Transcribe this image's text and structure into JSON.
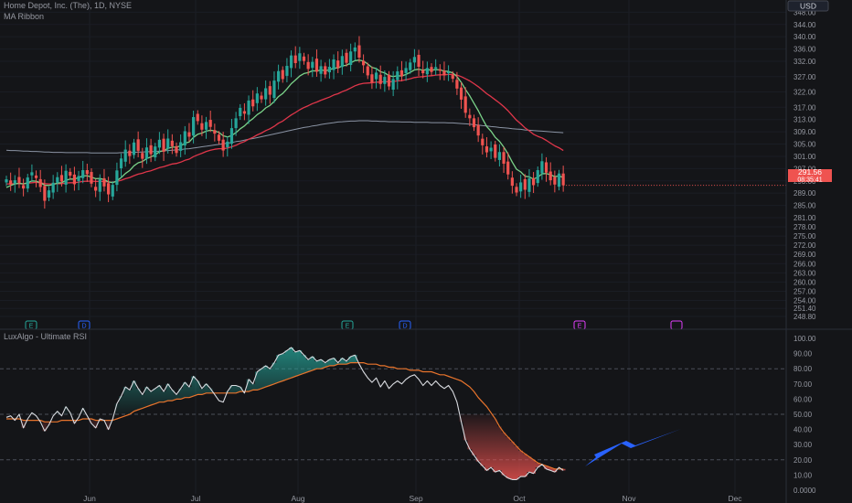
{
  "header": {
    "symbol_line": "Home Depot, Inc. (The), 1D, NYSE",
    "indicator_1": "MA Ribbon",
    "indicator_2": "LuxAlgo - Ultimate RSI",
    "currency": "USD"
  },
  "colors": {
    "background": "#141518",
    "up": "#26a69a",
    "down": "#ef5350",
    "ma_fast": "#7bd389",
    "ma_slow": "#e0364a",
    "ma_long": "#8a93a3",
    "rsi_line": "#d9dbe0",
    "rsi_signal": "#e8742c",
    "arrow": "#2962ff"
  },
  "chart_data": [
    {
      "type": "candlestick",
      "title": "Home Depot, Inc. (The), 1D, NYSE",
      "x_ticks": [
        "Jun",
        "Jul",
        "Aug",
        "Sep",
        "Oct",
        "Nov",
        "Dec"
      ],
      "y_ticks": [
        "348.00",
        "344.00",
        "340.00",
        "336.00",
        "332.00",
        "327.00",
        "322.00",
        "317.00",
        "313.00",
        "309.00",
        "305.00",
        "301.00",
        "297.00",
        "293.00",
        "289.00",
        "285.00",
        "281.00",
        "278.00",
        "275.00",
        "272.00",
        "269.00",
        "266.00",
        "263.00",
        "260.00",
        "257.00",
        "254.00",
        "251.40",
        "248.80"
      ],
      "ylim": [
        247,
        349
      ],
      "last_price": "291.56",
      "countdown": "08:35:41",
      "close": [
        293.5,
        291.8,
        293.2,
        292.3,
        290.5,
        294.1,
        295.8,
        293.9,
        291.0,
        286.5,
        289.9,
        292.4,
        294.2,
        292.8,
        296.3,
        294.7,
        291.9,
        294.6,
        296.5,
        295.2,
        292.1,
        289.8,
        293.5,
        291.2,
        288.6,
        291.7,
        296.4,
        300.3,
        303.2,
        301.1,
        305.5,
        302.8,
        300.2,
        303.9,
        301.7,
        304.2,
        306.4,
        302.5,
        306.8,
        304.3,
        302.1,
        305.6,
        309.2,
        307.4,
        313.8,
        312.5,
        309.7,
        312.2,
        310.6,
        308.4,
        306.1,
        302.9,
        305.8,
        310.2,
        313.4,
        316.8,
        314.9,
        319.2,
        317.3,
        321.5,
        319.6,
        323.2,
        321.1,
        325.7,
        328.8,
        326.2,
        330.5,
        333.9,
        331.4,
        334.6,
        332.1,
        329.5,
        331.8,
        328.6,
        330.4,
        327.7,
        330.2,
        332.6,
        329.8,
        333.7,
        331.5,
        335.2,
        336.5,
        333.2,
        330.7,
        327.4,
        325.1,
        328.3,
        324.6,
        326.9,
        323.8,
        326.2,
        328.7,
        327.1,
        329.8,
        331.6,
        333.4,
        330.2,
        328.1,
        329.8,
        328.5,
        330.1,
        328.9,
        327.4,
        328.6,
        326.3,
        323.1,
        319.5,
        315.2,
        313.4,
        310.5,
        307.8,
        304.6,
        302.3,
        303.8,
        300.5,
        302.4,
        298.6,
        295.1,
        291.4,
        289.2,
        292.5,
        290.1,
        293.8,
        291.6,
        296.5,
        299.4,
        295.7,
        293.2,
        291.8,
        295.4,
        291.56
      ],
      "ma_fast": [
        290.8,
        291.5,
        292.0,
        292.2,
        292.0,
        292.4,
        293.0,
        292.9,
        292.4,
        291.6,
        291.5,
        291.8,
        292.3,
        292.4,
        293.2,
        293.6,
        293.6,
        294.1,
        294.6,
        294.7,
        294.2,
        293.7,
        293.8,
        293.4,
        292.7,
        292.4,
        293.0,
        294.1,
        295.4,
        296.4,
        297.9,
        298.9,
        299.3,
        300.3,
        300.8,
        301.5,
        302.5,
        302.8,
        303.6,
        304.0,
        304.0,
        304.4,
        305.3,
        305.7,
        307.2,
        308.2,
        308.6,
        309.2,
        309.5,
        309.3,
        308.8,
        307.7,
        307.3,
        307.8,
        308.7,
        310.0,
        310.9,
        312.3,
        313.3,
        314.6,
        315.5,
        316.8,
        317.6,
        318.9,
        320.5,
        321.5,
        323.0,
        324.7,
        325.9,
        327.2,
        328.0,
        328.3,
        328.9,
        328.8,
        329.2,
        328.9,
        329.2,
        329.8,
        329.8,
        330.5,
        330.7,
        331.5,
        332.2,
        332.4,
        332.1,
        331.1,
        330.0,
        329.6,
        328.6,
        328.2,
        327.3,
        327.0,
        327.3,
        327.2,
        327.7,
        328.4,
        329.2,
        329.4,
        329.1,
        329.3,
        329.1,
        329.3,
        329.2,
        328.8,
        328.7,
        328.2,
        327.0,
        325.1,
        322.8,
        320.7,
        318.3,
        315.9,
        313.2,
        310.7,
        309.2,
        307.2,
        305.9,
        304.0,
        301.8,
        299.1,
        296.8,
        295.9,
        294.5,
        294.3,
        293.6,
        294.2,
        295.3,
        295.4,
        295.0,
        294.4,
        294.6,
        294.1
      ],
      "ma_slow": [
        292.0,
        292.0,
        292.1,
        292.1,
        292.0,
        292.2,
        292.4,
        292.5,
        292.4,
        292.1,
        292.0,
        292.0,
        292.1,
        292.1,
        292.3,
        292.4,
        292.4,
        292.6,
        292.8,
        292.9,
        292.9,
        292.8,
        292.8,
        292.8,
        292.6,
        292.6,
        292.8,
        293.2,
        293.7,
        294.1,
        294.7,
        295.2,
        295.5,
        296.0,
        296.3,
        296.8,
        297.3,
        297.6,
        298.1,
        298.5,
        298.7,
        299.1,
        299.7,
        300.1,
        300.9,
        301.5,
        302.0,
        302.6,
        303.0,
        303.3,
        303.5,
        303.5,
        303.7,
        304.1,
        304.6,
        305.3,
        305.8,
        306.6,
        307.2,
        308.0,
        308.6,
        309.4,
        310.0,
        310.8,
        311.8,
        312.5,
        313.5,
        314.5,
        315.3,
        316.2,
        316.9,
        317.5,
        318.2,
        318.7,
        319.3,
        319.8,
        320.3,
        321.0,
        321.4,
        322.1,
        322.6,
        323.3,
        324.0,
        324.5,
        324.8,
        324.9,
        325.0,
        325.2,
        325.2,
        325.4,
        325.3,
        325.4,
        325.6,
        325.7,
        326.0,
        326.3,
        326.7,
        326.9,
        327.0,
        327.2,
        327.3,
        327.5,
        327.6,
        327.6,
        327.7,
        327.7,
        327.5,
        327.0,
        326.3,
        325.6,
        324.7,
        323.7,
        322.6,
        321.4,
        320.5,
        319.4,
        318.4,
        317.2,
        315.9,
        314.3,
        312.8,
        311.6,
        310.3,
        309.3,
        308.2,
        307.5,
        307.0,
        306.2,
        305.3,
        304.4,
        303.8,
        302.9
      ],
      "ma_long": [
        303.0,
        302.9,
        302.9,
        302.8,
        302.7,
        302.7,
        302.6,
        302.6,
        302.5,
        302.4,
        302.4,
        302.3,
        302.3,
        302.3,
        302.2,
        302.2,
        302.2,
        302.2,
        302.2,
        302.2,
        302.1,
        302.1,
        302.1,
        302.1,
        302.1,
        302.1,
        302.1,
        302.2,
        302.2,
        302.3,
        302.3,
        302.4,
        302.4,
        302.5,
        302.5,
        302.6,
        302.7,
        302.8,
        302.9,
        303.0,
        303.1,
        303.2,
        303.4,
        303.5,
        303.7,
        303.9,
        304.1,
        304.3,
        304.5,
        304.7,
        304.9,
        305.1,
        305.3,
        305.5,
        305.8,
        306.0,
        306.3,
        306.6,
        306.8,
        307.1,
        307.4,
        307.7,
        308.0,
        308.3,
        308.6,
        308.9,
        309.2,
        309.5,
        309.8,
        310.1,
        310.4,
        310.6,
        310.9,
        311.1,
        311.4,
        311.6,
        311.8,
        312.0,
        312.2,
        312.3,
        312.4,
        312.5,
        312.5,
        312.6,
        312.6,
        312.6,
        312.5,
        312.5,
        312.4,
        312.4,
        312.3,
        312.3,
        312.3,
        312.2,
        312.2,
        312.2,
        312.1,
        312.1,
        312.1,
        312.1,
        312.0,
        312.0,
        312.0,
        312.0,
        311.9,
        311.9,
        311.8,
        311.7,
        311.6,
        311.5,
        311.3,
        311.2,
        311.0,
        310.9,
        310.7,
        310.6,
        310.4,
        310.3,
        310.2,
        310.0,
        309.9,
        309.8,
        309.6,
        309.5,
        309.4,
        309.3,
        309.2,
        309.1,
        309.0,
        308.9,
        308.8,
        308.7
      ],
      "series": [
        {
          "name": "MA Ribbon fast"
        },
        {
          "name": "MA Ribbon slow"
        },
        {
          "name": "MA Ribbon long"
        }
      ],
      "event_markers": [
        "E",
        "D",
        "E",
        "D",
        "E"
      ]
    },
    {
      "type": "line",
      "title": "LuxAlgo - Ultimate RSI",
      "y_ticks": [
        "100.00",
        "90.00",
        "80.00",
        "70.00",
        "60.00",
        "50.00",
        "40.00",
        "30.00",
        "20.00",
        "10.00",
        "0.0000"
      ],
      "ylim": [
        0,
        100
      ],
      "reference_lines": [
        80,
        50,
        20
      ],
      "rsi": [
        48,
        49,
        46,
        50,
        41,
        47,
        51,
        49,
        45,
        39,
        43,
        49,
        52,
        49,
        55,
        51,
        44,
        48,
        54,
        49,
        44,
        41,
        47,
        46,
        40,
        47,
        57,
        62,
        68,
        66,
        72,
        67,
        63,
        68,
        65,
        67,
        69,
        65,
        70,
        66,
        63,
        67,
        71,
        68,
        75,
        72,
        67,
        70,
        67,
        63,
        59,
        58,
        65,
        69,
        69,
        68,
        64,
        73,
        70,
        78,
        80,
        82,
        80,
        84,
        89,
        90,
        92,
        94,
        91,
        92,
        89,
        86,
        88,
        85,
        86,
        84,
        86,
        87,
        84,
        87,
        85,
        88,
        89,
        83,
        78,
        74,
        71,
        74,
        68,
        72,
        67,
        70,
        72,
        70,
        73,
        75,
        76,
        73,
        69,
        72,
        69,
        72,
        69,
        67,
        69,
        65,
        58,
        45,
        33,
        27,
        23,
        19,
        16,
        13,
        15,
        12,
        13,
        10,
        8,
        7,
        7,
        9,
        9,
        12,
        11,
        15,
        17,
        14,
        13,
        12,
        15,
        13
      ],
      "signal": [
        47,
        47,
        47,
        47,
        46,
        46,
        46,
        46,
        46,
        45,
        45,
        45,
        45,
        46,
        46,
        46,
        46,
        46,
        47,
        47,
        47,
        46,
        46,
        46,
        46,
        46,
        47,
        48,
        49,
        50,
        52,
        53,
        54,
        55,
        56,
        57,
        58,
        58,
        59,
        59,
        60,
        60,
        61,
        61,
        62,
        63,
        63,
        64,
        64,
        64,
        64,
        64,
        64,
        64,
        64,
        65,
        65,
        65,
        66,
        66,
        67,
        68,
        69,
        70,
        71,
        72,
        73,
        74,
        75,
        76,
        77,
        78,
        79,
        80,
        80,
        81,
        82,
        82,
        83,
        83,
        83,
        84,
        84,
        84,
        84,
        83,
        83,
        83,
        82,
        82,
        81,
        81,
        80,
        80,
        80,
        79,
        79,
        79,
        78,
        78,
        78,
        77,
        76,
        76,
        75,
        74,
        73,
        72,
        70,
        68,
        65,
        61,
        58,
        55,
        51,
        47,
        42,
        38,
        35,
        32,
        29,
        26,
        24,
        22,
        20,
        18,
        17,
        16,
        15,
        14,
        14,
        14
      ],
      "series": []
    }
  ]
}
